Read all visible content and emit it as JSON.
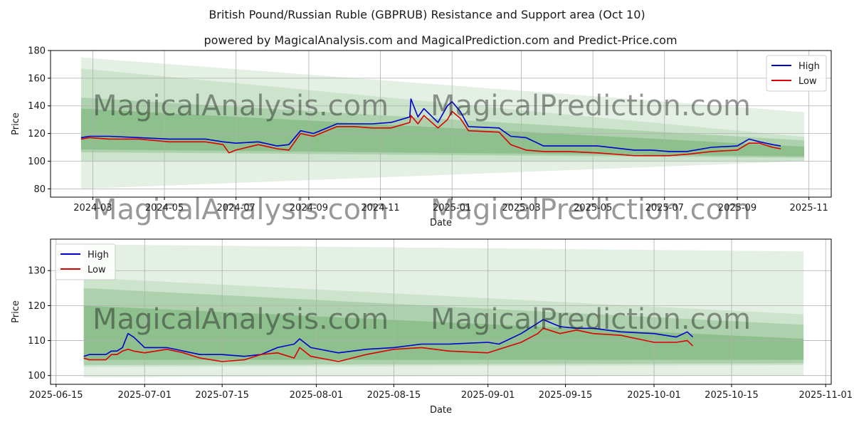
{
  "colors": {
    "high": "#0000cc",
    "low": "#dd0000",
    "band": "#2e8b2e",
    "grid": "#b0b0b0",
    "watermark": "#cccccc"
  },
  "watermark_text": "MagicalAnalysis.com    MagicalPrediction.com",
  "chart_data": [
    {
      "type": "line",
      "title": "British Pound/Russian Ruble (GBPRUB) Resistance and Support area (Oct 10)",
      "subtitle": "powered by MagicalAnalysis.com and MagicalPrediction.com and Predict-Price.com",
      "xlabel": "Date",
      "ylabel": "Price",
      "xlim": [
        "2024-01-25",
        "2025-11-20"
      ],
      "ylim": [
        74,
        180
      ],
      "x_ticks": [
        "2024-03-01",
        "2024-05-01",
        "2024-07-01",
        "2024-09-01",
        "2024-11-01",
        "2025-01-01",
        "2025-03-01",
        "2025-05-01",
        "2025-07-01",
        "2025-09-01",
        "2025-11-01"
      ],
      "x_tick_labels": [
        "2024-03",
        "2024-05",
        "2024-07",
        "2024-09",
        "2024-11",
        "2025-01",
        "2025-03",
        "2025-05",
        "2025-07",
        "2025-09",
        "2025-11"
      ],
      "y_ticks": [
        80,
        100,
        120,
        140,
        160,
        180
      ],
      "grid": true,
      "legend": "top-right",
      "bands": [
        {
          "x": [
            "2024-02-20",
            "2025-10-28"
          ],
          "upper": [
            175,
            135.5
          ],
          "lower": [
            80,
            100
          ],
          "opacity": 0.13
        },
        {
          "x": [
            "2024-02-20",
            "2025-10-28"
          ],
          "upper": [
            167,
            117.5
          ],
          "lower": [
            100,
            100
          ],
          "opacity": 0.13
        },
        {
          "x": [
            "2024-02-20",
            "2025-10-28"
          ],
          "upper": [
            146,
            115
          ],
          "lower": [
            106.5,
            102.5
          ],
          "opacity": 0.2
        },
        {
          "x": [
            "2024-02-20",
            "2025-10-28"
          ],
          "upper": [
            138,
            110.5
          ],
          "lower": [
            108.5,
            103.5
          ],
          "opacity": 0.24
        }
      ],
      "series": [
        {
          "name": "High",
          "color": "#0000cc",
          "x": [
            "2024-02-20",
            "2024-02-27",
            "2024-03-15",
            "2024-04-10",
            "2024-05-05",
            "2024-06-05",
            "2024-06-20",
            "2024-07-01",
            "2024-07-20",
            "2024-08-05",
            "2024-08-15",
            "2024-08-25",
            "2024-09-05",
            "2024-09-25",
            "2024-10-10",
            "2024-10-25",
            "2024-11-10",
            "2024-11-26",
            "2024-11-27",
            "2024-12-03",
            "2024-12-08",
            "2024-12-20",
            "2024-12-28",
            "2025-01-01",
            "2025-01-08",
            "2025-01-15",
            "2025-02-10",
            "2025-02-20",
            "2025-03-05",
            "2025-03-20",
            "2025-04-10",
            "2025-05-05",
            "2025-06-05",
            "2025-06-20",
            "2025-07-05",
            "2025-07-20",
            "2025-08-10",
            "2025-09-01",
            "2025-09-11",
            "2025-09-20",
            "2025-10-01",
            "2025-10-08"
          ],
          "values": [
            117,
            118,
            118,
            117,
            116,
            116,
            114,
            113,
            114,
            111,
            112,
            122,
            120,
            127,
            127,
            127,
            128,
            132,
            145,
            132,
            138,
            128,
            140,
            143,
            136,
            125,
            124,
            118,
            117,
            111,
            111,
            111,
            108,
            108,
            107,
            107,
            110,
            111,
            116,
            114,
            112,
            111
          ]
        },
        {
          "name": "Low",
          "color": "#dd0000",
          "x": [
            "2024-02-20",
            "2024-02-27",
            "2024-03-15",
            "2024-04-10",
            "2024-05-05",
            "2024-06-05",
            "2024-06-20",
            "2024-06-25",
            "2024-07-01",
            "2024-07-20",
            "2024-08-05",
            "2024-08-15",
            "2024-08-25",
            "2024-09-05",
            "2024-09-25",
            "2024-10-10",
            "2024-10-25",
            "2024-11-10",
            "2024-11-26",
            "2024-11-27",
            "2024-12-03",
            "2024-12-08",
            "2024-12-20",
            "2024-12-28",
            "2025-01-01",
            "2025-01-08",
            "2025-01-15",
            "2025-02-10",
            "2025-02-20",
            "2025-03-05",
            "2025-03-20",
            "2025-04-10",
            "2025-05-05",
            "2025-06-05",
            "2025-06-20",
            "2025-07-05",
            "2025-07-20",
            "2025-08-10",
            "2025-09-01",
            "2025-09-11",
            "2025-09-20",
            "2025-10-01",
            "2025-10-08"
          ],
          "values": [
            116,
            117,
            116,
            116,
            114,
            114,
            112,
            106,
            108,
            112,
            109,
            108,
            120,
            118,
            125,
            125,
            124,
            124,
            128,
            133,
            127,
            133,
            124,
            130,
            136,
            131,
            122,
            121,
            112,
            108,
            107,
            107,
            106,
            104,
            104,
            104,
            105,
            107,
            108,
            113,
            113,
            110,
            109
          ]
        }
      ]
    },
    {
      "type": "line",
      "xlabel": "Date",
      "ylabel": "Price",
      "xlim": [
        "2025-06-14",
        "2025-11-02"
      ],
      "ylim": [
        97.5,
        139
      ],
      "x_ticks": [
        "2025-06-15",
        "2025-07-01",
        "2025-07-15",
        "2025-08-01",
        "2025-08-15",
        "2025-09-01",
        "2025-09-15",
        "2025-10-01",
        "2025-10-15",
        "2025-11-01"
      ],
      "x_tick_labels": [
        "2025-06-15",
        "2025-07-01",
        "2025-07-15",
        "2025-08-01",
        "2025-08-15",
        "2025-09-01",
        "2025-09-15",
        "2025-10-01",
        "2025-10-15",
        "2025-11-01"
      ],
      "y_ticks": [
        100,
        110,
        120,
        130
      ],
      "grid": true,
      "legend": "top-left",
      "bands": [
        {
          "x": [
            "2025-06-20",
            "2025-10-28"
          ],
          "upper": [
            137.5,
            135.5
          ],
          "lower": [
            99.5,
            100
          ],
          "opacity": 0.13
        },
        {
          "x": [
            "2025-06-20",
            "2025-10-28"
          ],
          "upper": [
            128,
            117.5
          ],
          "lower": [
            102.5,
            103
          ],
          "opacity": 0.13
        },
        {
          "x": [
            "2025-06-20",
            "2025-10-28"
          ],
          "upper": [
            125,
            114.5
          ],
          "lower": [
            103,
            103.5
          ],
          "opacity": 0.2
        },
        {
          "x": [
            "2025-06-20",
            "2025-10-28"
          ],
          "upper": [
            120,
            110.5
          ],
          "lower": [
            104.5,
            104.5
          ],
          "opacity": 0.24
        }
      ],
      "series": [
        {
          "name": "High",
          "color": "#0000cc",
          "x": [
            "2025-06-20",
            "2025-06-21",
            "2025-06-24",
            "2025-06-25",
            "2025-06-26",
            "2025-06-27",
            "2025-06-28",
            "2025-06-29",
            "2025-07-01",
            "2025-07-03",
            "2025-07-05",
            "2025-07-08",
            "2025-07-11",
            "2025-07-15",
            "2025-07-19",
            "2025-07-22",
            "2025-07-25",
            "2025-07-28",
            "2025-07-29",
            "2025-07-31",
            "2025-08-05",
            "2025-08-10",
            "2025-08-15",
            "2025-08-20",
            "2025-08-25",
            "2025-09-01",
            "2025-09-03",
            "2025-09-07",
            "2025-09-10",
            "2025-09-11",
            "2025-09-14",
            "2025-09-17",
            "2025-09-20",
            "2025-09-25",
            "2025-10-01",
            "2025-10-05",
            "2025-10-07",
            "2025-10-08"
          ],
          "values": [
            105.5,
            106,
            106,
            107,
            107,
            108,
            112,
            111,
            108,
            108,
            108,
            107,
            106,
            106,
            105.5,
            106,
            108,
            109,
            110.5,
            108,
            106.5,
            107.5,
            108,
            109,
            109,
            109.5,
            109,
            112,
            115,
            116,
            114,
            113.5,
            113.5,
            112.5,
            112,
            111,
            112.5,
            111
          ]
        },
        {
          "name": "Low",
          "color": "#dd0000",
          "x": [
            "2025-06-20",
            "2025-06-21",
            "2025-06-24",
            "2025-06-25",
            "2025-06-26",
            "2025-06-27",
            "2025-06-28",
            "2025-06-29",
            "2025-07-01",
            "2025-07-03",
            "2025-07-05",
            "2025-07-08",
            "2025-07-11",
            "2025-07-15",
            "2025-07-19",
            "2025-07-22",
            "2025-07-25",
            "2025-07-28",
            "2025-07-29",
            "2025-07-31",
            "2025-08-05",
            "2025-08-10",
            "2025-08-15",
            "2025-08-20",
            "2025-08-25",
            "2025-09-01",
            "2025-09-03",
            "2025-09-07",
            "2025-09-10",
            "2025-09-11",
            "2025-09-14",
            "2025-09-17",
            "2025-09-20",
            "2025-09-25",
            "2025-10-01",
            "2025-10-05",
            "2025-10-07",
            "2025-10-08"
          ],
          "values": [
            105,
            104.5,
            104.5,
            106,
            106,
            107,
            107.5,
            107,
            106.5,
            107,
            107.5,
            106.5,
            105,
            104,
            104.5,
            106,
            106.5,
            105,
            108,
            105.5,
            104,
            106,
            107.5,
            108,
            107,
            106.5,
            107.5,
            109.5,
            112,
            113.5,
            112,
            113,
            112,
            111.5,
            109.5,
            109.5,
            110,
            108.5
          ]
        }
      ]
    }
  ]
}
